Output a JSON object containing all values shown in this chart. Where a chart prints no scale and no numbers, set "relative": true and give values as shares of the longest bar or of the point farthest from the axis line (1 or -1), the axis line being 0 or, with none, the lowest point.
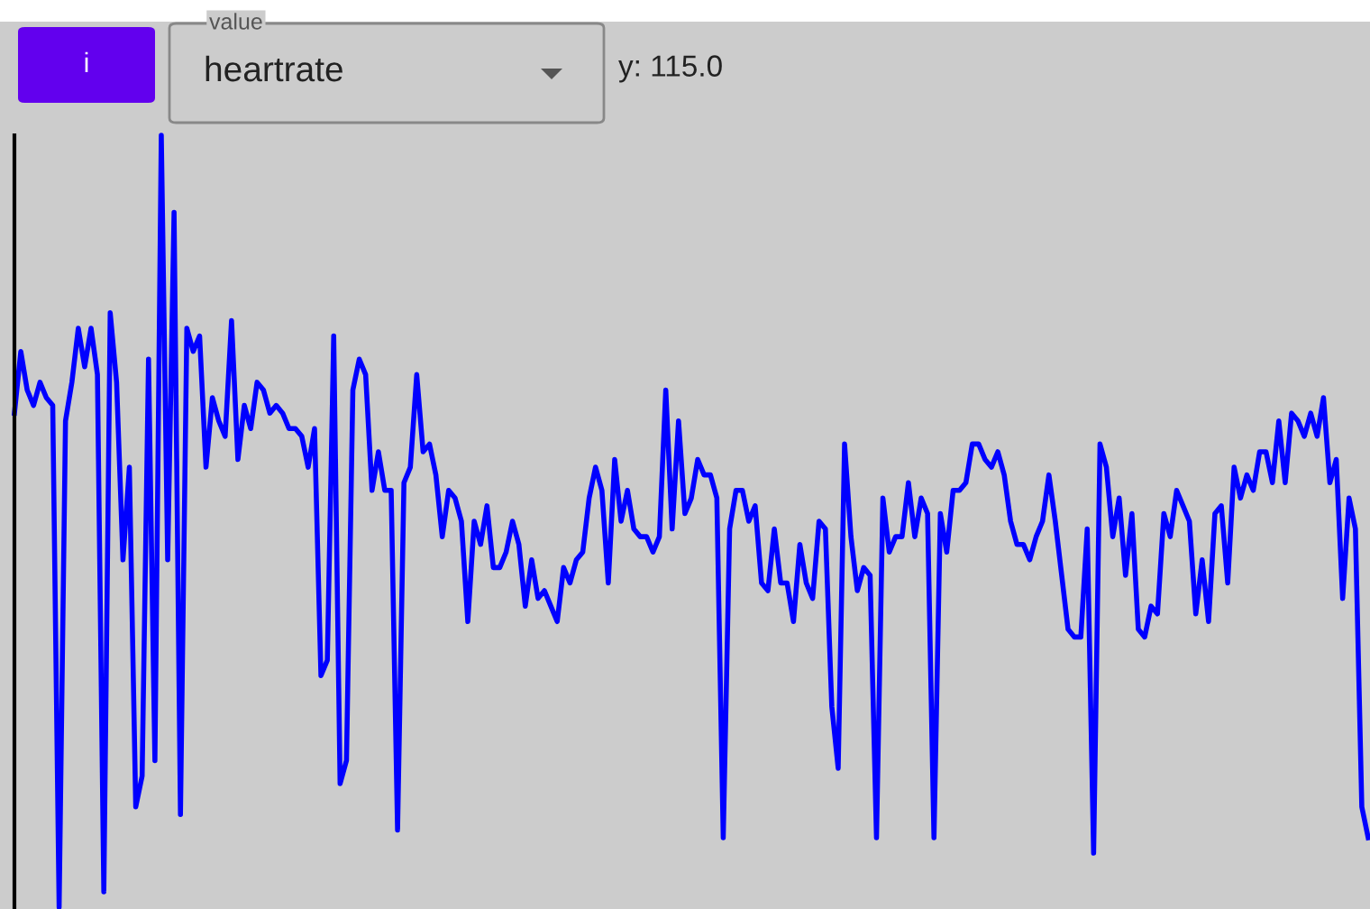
{
  "chart_data": {
    "type": "line",
    "relative": true,
    "color": "#0000ff",
    "marker": "none",
    "line_style": "solid",
    "grid": false,
    "legend": false,
    "annotations": [
      "i",
      "value",
      "heartrate",
      "y: 115.0"
    ],
    "categories": [
      null,
      null,
      null,
      null,
      null,
      null,
      null,
      null,
      null,
      null,
      null,
      null,
      null,
      null,
      null,
      null,
      null,
      null,
      null,
      null,
      null,
      null,
      null,
      null,
      null,
      null,
      null,
      null,
      null,
      null,
      null,
      null,
      null,
      null,
      null,
      null,
      null,
      null,
      null,
      null,
      null,
      null,
      null,
      null,
      null,
      null,
      null,
      null,
      null,
      null,
      null,
      null,
      null,
      null,
      null,
      null,
      null,
      null,
      null,
      null,
      null,
      null,
      null,
      null,
      null,
      null,
      null,
      null,
      null,
      null,
      null,
      null,
      null,
      null,
      null,
      null,
      null,
      null,
      null,
      null,
      null,
      null,
      null,
      null,
      null,
      null,
      null,
      null,
      null,
      null,
      null,
      null,
      null,
      null,
      null,
      null,
      null,
      null,
      null,
      null,
      null,
      null,
      null,
      null,
      null,
      null,
      null,
      null,
      null,
      null,
      null,
      null,
      null,
      null,
      null,
      null,
      null,
      null,
      null,
      null,
      null,
      null,
      null,
      null,
      null,
      null,
      null,
      null,
      null,
      null,
      null,
      null,
      null,
      null,
      null,
      null,
      null,
      null,
      null,
      null,
      null,
      null,
      null,
      null,
      null,
      null,
      null,
      null,
      null,
      null,
      null,
      null,
      null,
      null,
      null,
      null,
      null,
      null,
      null,
      null,
      null,
      null,
      null,
      null,
      null,
      null,
      null,
      null,
      null,
      null,
      null,
      null,
      null,
      null,
      null,
      null,
      null,
      null,
      null,
      null,
      null,
      null,
      null,
      null,
      null,
      null,
      null,
      null,
      null,
      null,
      null,
      null,
      null,
      null,
      null,
      null,
      null,
      null,
      null,
      null,
      null,
      null,
      null,
      null,
      null,
      null,
      null,
      null,
      null,
      null,
      null,
      null,
      null
    ],
    "values": [
      0.64,
      0.72,
      0.67,
      0.65,
      0.68,
      0.66,
      0.65,
      0,
      0.63,
      0.68,
      0.75,
      0.7,
      0.75,
      0.69,
      0.02,
      0.77,
      0.68,
      0.45,
      0.57,
      0.13,
      0.17,
      0.71,
      0.19,
      1,
      0.45,
      0.9,
      0.12,
      0.75,
      0.72,
      0.74,
      0.57,
      0.66,
      0.63,
      0.61,
      0.76,
      0.58,
      0.65,
      0.62,
      0.68,
      0.67,
      0.64,
      0.65,
      0.64,
      0.62,
      0.62,
      0.61,
      0.57,
      0.62,
      0.3,
      0.32,
      0.74,
      0.16,
      0.19,
      0.67,
      0.71,
      0.69,
      0.54,
      0.59,
      0.54,
      0.54,
      0.1,
      0.55,
      0.57,
      0.69,
      0.59,
      0.6,
      0.56,
      0.48,
      0.54,
      0.53,
      0.5,
      0.37,
      0.5,
      0.47,
      0.52,
      0.44,
      0.44,
      0.46,
      0.5,
      0.47,
      0.39,
      0.45,
      0.4,
      0.41,
      0.39,
      0.37,
      0.44,
      0.42,
      0.45,
      0.46,
      0.53,
      0.57,
      0.54,
      0.42,
      0.58,
      0.5,
      0.54,
      0.49,
      0.48,
      0.48,
      0.46,
      0.48,
      0.67,
      0.49,
      0.63,
      0.51,
      0.53,
      0.58,
      0.56,
      0.56,
      0.53,
      0.09,
      0.49,
      0.54,
      0.54,
      0.5,
      0.52,
      0.42,
      0.41,
      0.49,
      0.42,
      0.42,
      0.37,
      0.47,
      0.42,
      0.4,
      0.5,
      0.49,
      0.26,
      0.18,
      0.6,
      0.48,
      0.41,
      0.44,
      0.43,
      0.09,
      0.53,
      0.46,
      0.48,
      0.48,
      0.55,
      0.48,
      0.53,
      0.51,
      0.09,
      0.51,
      0.46,
      0.54,
      0.54,
      0.55,
      0.6,
      0.6,
      0.58,
      0.57,
      0.59,
      0.56,
      0.5,
      0.47,
      0.47,
      0.45,
      0.48,
      0.5,
      0.56,
      0.5,
      0.43,
      0.36,
      0.35,
      0.35,
      0.49,
      0.07,
      0.6,
      0.57,
      0.48,
      0.53,
      0.43,
      0.51,
      0.36,
      0.35,
      0.39,
      0.38,
      0.51,
      0.48,
      0.54,
      0.52,
      0.5,
      0.38,
      0.45,
      0.37,
      0.51,
      0.52,
      0.42,
      0.57,
      0.53,
      0.56,
      0.54,
      0.59,
      0.59,
      0.55,
      0.63,
      0.55,
      0.64,
      0.63,
      0.61,
      0.64,
      0.61,
      0.66,
      0.55,
      0.58,
      0.4,
      0.53,
      0.49,
      0.13,
      0.09
    ]
  }
}
